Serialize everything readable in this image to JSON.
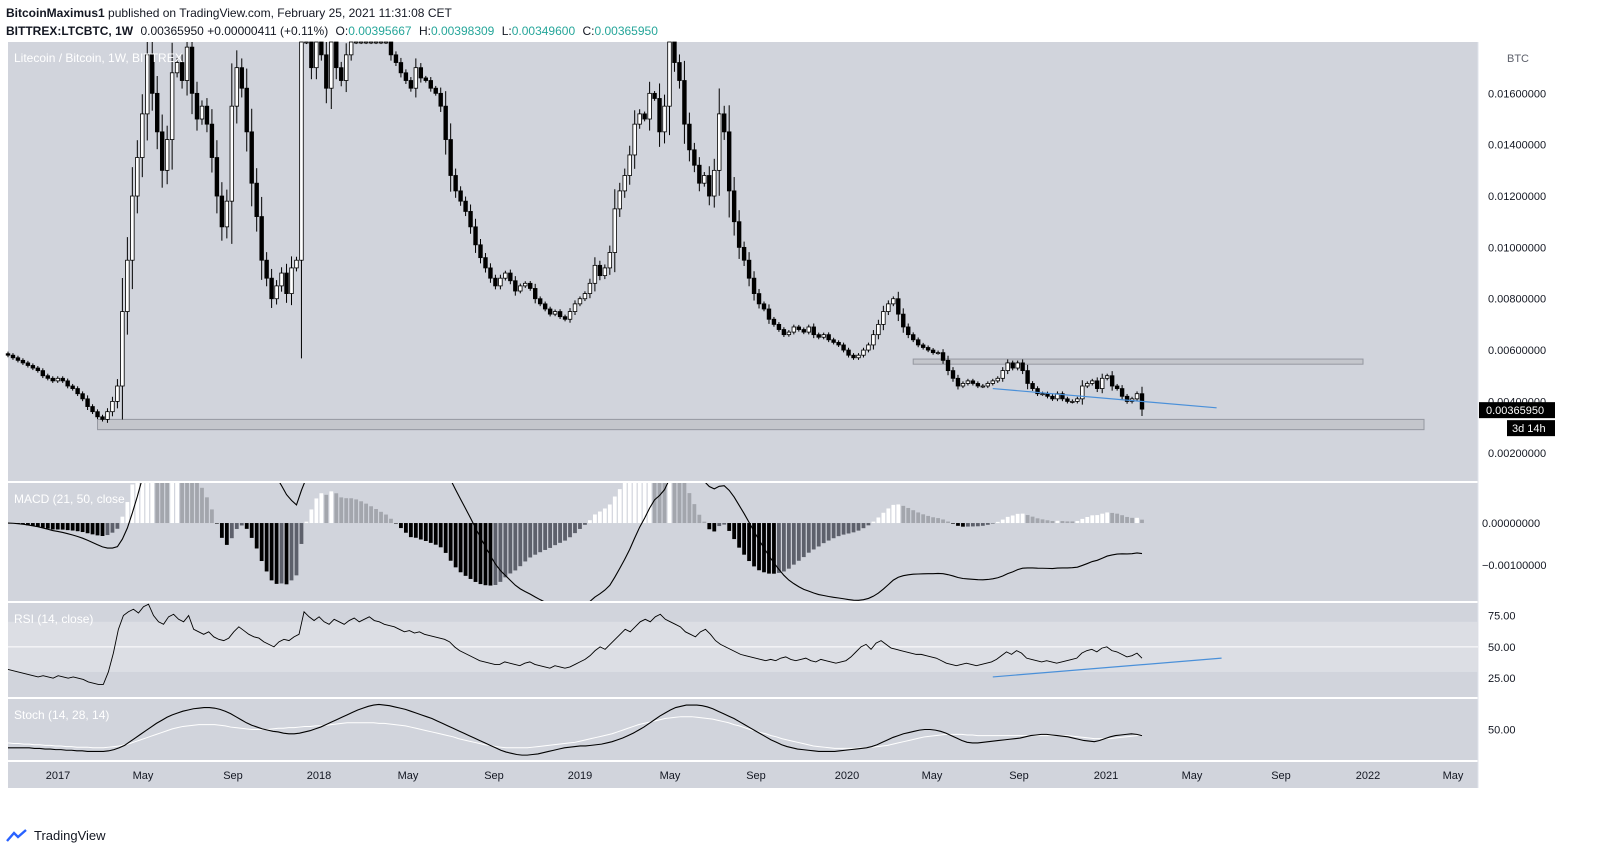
{
  "header": {
    "publisher": "BitcoinMaximus1",
    "published_text": "published on TradingView.com, February 25, 2021 11:31:08 CET",
    "symbol": "BITTREX:LTCBTC, 1W",
    "last": "0.00365950",
    "change": "+0.00000411 (+0.11%)",
    "o_label": "O:",
    "o_value": "0.00395667",
    "h_label": "H:",
    "h_value": "0.00398309",
    "l_label": "L:",
    "l_value": "0.00349600",
    "c_label": "C:",
    "c_value": "0.00365950"
  },
  "colors": {
    "panel_bg": "#d1d4dc",
    "candle": "#000000",
    "zone": "#c4c6cc",
    "zone_border": "#9598a1",
    "trendline": "#4a90d9",
    "price_tag_bg": "#000000",
    "rsi_band": "#dcdee4"
  },
  "chart_data": [
    {
      "type": "candlestick",
      "title": "Litecoin / Bitcoin, 1W, BITTREX",
      "ylabel": "BTC",
      "yticks": [
        "0.01600000",
        "0.01400000",
        "0.01200000",
        "0.01000000",
        "0.00800000",
        "0.00600000",
        "0.00400000",
        "0.00200000"
      ],
      "ylim": [
        0.0009,
        0.018
      ],
      "xticks": [
        "2017",
        "May",
        "Sep",
        "2018",
        "May",
        "Sep",
        "2019",
        "May",
        "Sep",
        "2020",
        "May",
        "Sep",
        "2021",
        "May",
        "Sep",
        "2022",
        "May"
      ],
      "last_price_tag": "0.00365950",
      "countdown_tag": "3d 14h",
      "close_series": [
        0.0058,
        0.0057,
        0.0056,
        0.0055,
        0.0054,
        0.0053,
        0.0052,
        0.005,
        0.0049,
        0.0048,
        0.0049,
        0.0048,
        0.0046,
        0.0045,
        0.0043,
        0.0041,
        0.0038,
        0.0036,
        0.0034,
        0.0033,
        0.0036,
        0.004,
        0.0046,
        0.0075,
        0.0095,
        0.012,
        0.0135,
        0.0152,
        0.0175,
        0.016,
        0.0145,
        0.013,
        0.0142,
        0.0168,
        0.0172,
        0.0165,
        0.0178,
        0.016,
        0.015,
        0.0155,
        0.0148,
        0.0135,
        0.012,
        0.0108,
        0.0118,
        0.0155,
        0.017,
        0.0162,
        0.0145,
        0.0125,
        0.0112,
        0.0095,
        0.0088,
        0.008,
        0.0085,
        0.009,
        0.0082,
        0.0092,
        0.0095,
        0.018,
        0.018,
        0.017,
        0.018,
        0.0175,
        0.0162,
        0.018,
        0.017,
        0.0165,
        0.0175,
        0.018,
        0.018,
        0.018,
        0.018,
        0.018,
        0.018,
        0.018,
        0.018,
        0.0175,
        0.0172,
        0.0168,
        0.0165,
        0.0162,
        0.017,
        0.0166,
        0.0165,
        0.0162,
        0.016,
        0.0155,
        0.0142,
        0.0128,
        0.0122,
        0.0118,
        0.0114,
        0.0108,
        0.0101,
        0.0096,
        0.0092,
        0.0088,
        0.0085,
        0.0088,
        0.009,
        0.0087,
        0.0083,
        0.0085,
        0.0086,
        0.0084,
        0.008,
        0.0078,
        0.0076,
        0.0074,
        0.0075,
        0.0073,
        0.0072,
        0.0075,
        0.0078,
        0.008,
        0.0082,
        0.0086,
        0.0093,
        0.0089,
        0.0092,
        0.0098,
        0.0115,
        0.0122,
        0.0128,
        0.0136,
        0.0148,
        0.0152,
        0.015,
        0.016,
        0.0158,
        0.0145,
        0.0155,
        0.018,
        0.0172,
        0.0165,
        0.0148,
        0.0138,
        0.0132,
        0.0125,
        0.0128,
        0.012,
        0.013,
        0.0152,
        0.0145,
        0.0122,
        0.011,
        0.01,
        0.0095,
        0.0088,
        0.0082,
        0.0078,
        0.0076,
        0.0072,
        0.007,
        0.0068,
        0.0066,
        0.0067,
        0.0069,
        0.0068,
        0.0067,
        0.0069,
        0.0066,
        0.0065,
        0.0066,
        0.0064,
        0.0063,
        0.0062,
        0.006,
        0.0058,
        0.0057,
        0.0058,
        0.006,
        0.0062,
        0.0066,
        0.007,
        0.0075,
        0.0078,
        0.008,
        0.0074,
        0.0069,
        0.0066,
        0.0064,
        0.0062,
        0.0061,
        0.006,
        0.0059,
        0.0059,
        0.0056,
        0.0052,
        0.0049,
        0.0046,
        0.0047,
        0.0048,
        0.0047,
        0.0046,
        0.0046,
        0.0047,
        0.0048,
        0.0049,
        0.0052,
        0.0055,
        0.0053,
        0.0055,
        0.0052,
        0.0047,
        0.0045,
        0.0043,
        0.0043,
        0.0042,
        0.0041,
        0.0043,
        0.0041,
        0.004,
        0.004,
        0.0041,
        0.0046,
        0.0047,
        0.0048,
        0.0045,
        0.0049,
        0.005,
        0.0046,
        0.0045,
        0.0042,
        0.004,
        0.0041,
        0.0043,
        0.0037
      ],
      "support_zone": [
        0.0029,
        0.0033
      ],
      "resistance_zone": [
        0.00545,
        0.00565
      ]
    },
    {
      "type": "histogram",
      "title": "MACD (21, 50, close",
      "yticks": [
        "0.00000000",
        "−0.00100000"
      ],
      "ylim": [
        -0.00185,
        0.00095
      ]
    },
    {
      "type": "line",
      "title": "RSI (14, close)",
      "yticks": [
        "75.00",
        "50.00",
        "25.00"
      ],
      "ylim": [
        10,
        85
      ],
      "series": [
        32,
        31,
        30,
        29,
        28,
        27,
        26,
        27,
        26,
        25,
        27,
        26,
        25,
        26,
        25,
        24,
        22,
        21,
        20,
        20,
        30,
        45,
        64,
        75,
        78,
        80,
        77,
        82,
        84,
        75,
        70,
        68,
        74,
        76,
        72,
        70,
        75,
        64,
        62,
        60,
        62,
        58,
        56,
        55,
        57,
        62,
        66,
        63,
        60,
        58,
        57,
        54,
        52,
        50,
        54,
        56,
        55,
        58,
        60,
        78,
        74,
        71,
        74,
        70,
        68,
        72,
        70,
        68,
        71,
        73,
        70,
        72,
        74,
        71,
        70,
        68,
        67,
        66,
        64,
        62,
        63,
        61,
        62,
        60,
        59,
        58,
        57,
        56,
        54,
        50,
        47,
        45,
        43,
        41,
        39,
        38,
        37,
        36,
        36,
        38,
        37,
        36,
        35,
        37,
        38,
        36,
        35,
        34,
        33,
        35,
        34,
        33,
        34,
        36,
        38,
        40,
        43,
        47,
        50,
        48,
        52,
        56,
        60,
        64,
        62,
        66,
        70,
        72,
        70,
        74,
        76,
        72,
        70,
        68,
        66,
        62,
        60,
        58,
        62,
        64,
        60,
        55,
        52,
        50,
        48,
        46,
        44,
        43,
        42,
        41,
        40,
        39,
        40,
        39,
        41,
        42,
        40,
        39,
        40,
        41,
        39,
        38,
        40,
        39,
        38,
        37,
        38,
        39,
        42,
        46,
        50,
        52,
        48,
        53,
        55,
        52,
        49,
        48,
        47,
        46,
        45,
        44,
        44,
        43,
        42,
        41,
        39,
        37,
        36,
        35,
        36,
        37,
        36,
        35,
        36,
        37,
        38,
        40,
        43,
        46,
        44,
        47,
        45,
        41,
        40,
        39,
        38,
        39,
        38,
        37,
        38,
        39,
        40,
        41,
        45,
        47,
        48,
        46,
        49,
        50,
        47,
        46,
        44,
        42,
        43,
        45,
        41
      ],
      "trendline": true
    },
    {
      "type": "line",
      "title": "Stoch (14, 28, 14)",
      "yticks": [
        "50.00"
      ],
      "ylim": [
        0,
        100
      ],
      "series": [
        {
          "name": "k",
          "values": [
            20,
            20,
            20,
            20,
            20,
            19,
            19,
            18,
            18,
            17,
            17,
            16,
            16,
            15,
            15,
            14,
            14,
            14,
            14,
            15,
            17,
            20,
            24,
            30,
            36,
            42,
            48,
            54,
            60,
            65,
            70,
            74,
            77,
            80,
            82,
            84,
            85,
            86,
            86,
            85,
            83,
            80,
            76,
            71,
            66,
            61,
            57,
            54,
            51,
            49,
            47,
            46,
            44,
            43,
            43,
            44,
            46,
            48,
            51,
            54,
            58,
            62,
            66,
            70,
            74,
            78,
            82,
            85,
            88,
            90,
            91,
            90,
            89,
            87,
            85,
            83,
            80,
            77,
            74,
            71,
            68,
            64,
            60,
            56,
            52,
            48,
            44,
            40,
            36,
            32,
            28,
            24,
            20,
            16,
            13,
            11,
            9,
            8,
            8,
            9,
            10,
            12,
            14,
            16,
            18,
            20,
            21,
            22,
            23,
            23,
            24,
            25,
            26,
            28,
            30,
            33,
            36,
            40,
            44,
            49,
            54,
            60,
            66,
            72,
            77,
            82,
            86,
            88,
            90,
            90,
            90,
            89,
            87,
            84,
            80,
            76,
            72,
            68,
            63,
            58,
            53,
            48,
            43,
            38,
            33,
            29,
            25,
            22,
            20,
            18,
            17,
            16,
            15,
            14,
            14,
            14,
            14,
            15,
            16,
            17,
            18,
            19,
            20,
            22,
            25,
            29,
            33,
            37,
            40,
            43,
            45,
            47,
            49,
            50,
            50,
            49,
            47,
            44,
            40,
            36,
            32,
            29,
            28,
            28,
            29,
            30,
            31,
            32,
            33,
            34,
            35,
            36,
            38,
            40,
            41,
            42,
            42,
            41,
            40,
            39,
            38,
            36,
            34,
            32,
            31,
            30,
            32,
            35,
            38,
            40,
            41,
            42,
            43,
            42,
            40
          ]
        },
        {
          "name": "d",
          "values": [
            28,
            27,
            27,
            26,
            26,
            25,
            25,
            24,
            24,
            23,
            23,
            22,
            22,
            21,
            21,
            21,
            20,
            20,
            20,
            21,
            22,
            23,
            25,
            27,
            30,
            33,
            36,
            39,
            42,
            45,
            48,
            51,
            53,
            55,
            56,
            57,
            58,
            58,
            58,
            58,
            57,
            56,
            54,
            53,
            52,
            51,
            50,
            50,
            50,
            50,
            51,
            52,
            52,
            53,
            53,
            54,
            55,
            55,
            56,
            56,
            57,
            58,
            59,
            60,
            61,
            61,
            61,
            61,
            61,
            61,
            60,
            60,
            59,
            58,
            57,
            56,
            54,
            52,
            50,
            48,
            46,
            44,
            42,
            40,
            38,
            35,
            33,
            31,
            29,
            27,
            25,
            24,
            22,
            21,
            20,
            20,
            20,
            20,
            20,
            21,
            22,
            23,
            24,
            25,
            26,
            27,
            28,
            29,
            31,
            33,
            35,
            37,
            39,
            41,
            43,
            46,
            49,
            52,
            55,
            58,
            60,
            62,
            64,
            66,
            68,
            69,
            70,
            71,
            71,
            71,
            70,
            69,
            68,
            67,
            65,
            63,
            61,
            58,
            56,
            53,
            50,
            48,
            45,
            43,
            40,
            38,
            35,
            33,
            31,
            29,
            27,
            25,
            23,
            22,
            21,
            20,
            19,
            19,
            19,
            19,
            19,
            20,
            20,
            21,
            22,
            23,
            24,
            26,
            28,
            30,
            32,
            34,
            36,
            38,
            39,
            40,
            41,
            42,
            42,
            42,
            42,
            41,
            41,
            40,
            40,
            40,
            40,
            40,
            40,
            40,
            40,
            40,
            40,
            40,
            40,
            40,
            40,
            40,
            40,
            40,
            40,
            39,
            38,
            37,
            36,
            35,
            35,
            35,
            35,
            36,
            37,
            38,
            39,
            40,
            41
          ]
        }
      ]
    }
  ],
  "footer": {
    "brand": "TradingView"
  }
}
